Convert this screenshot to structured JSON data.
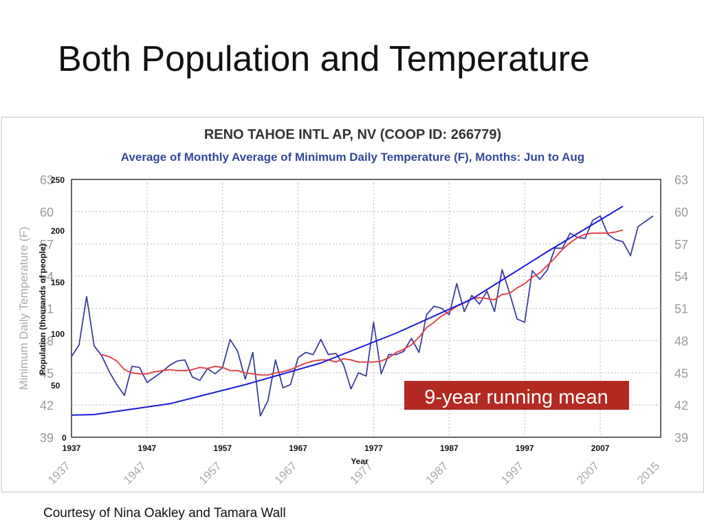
{
  "slide": {
    "title": "Both Population and Temperature",
    "credit": "Courtesy of Nina Oakley and Tamara Wall"
  },
  "chart_data": {
    "type": "line",
    "title": "RENO TAHOE INTL AP, NV (COOP ID: 266779)",
    "subtitle": "Average of Monthly Average of Minimum Daily Temperature (F), Months: Jun to Aug",
    "temperature_axis": {
      "label": "Minimum Daily Temperature (F)",
      "ylim": [
        39,
        63
      ],
      "ticks": [
        39,
        42,
        45,
        48,
        51,
        54,
        57,
        60,
        63
      ]
    },
    "population_axis": {
      "label": "Population (thousands of people)",
      "ylim": [
        0,
        250
      ],
      "ticks": [
        0,
        50,
        100,
        150,
        200,
        250
      ]
    },
    "year_axis": {
      "label": "Year",
      "range": [
        1937,
        2015
      ],
      "ticks": [
        1937,
        1947,
        1957,
        1967,
        1977,
        1987,
        1997,
        2007
      ],
      "rotated_ticks": [
        1937,
        1947,
        1957,
        1967,
        1977,
        1987,
        1997,
        2007,
        2015
      ]
    },
    "annotation": "9-year running mean",
    "series": [
      {
        "name": "",
        "axis": "temperature",
        "color": "#3b3d9c",
        "x": [
          1937,
          1938,
          1939,
          1940,
          1941,
          1942,
          1943,
          1944,
          1945,
          1946,
          1947,
          1948,
          1949,
          1950,
          1951,
          1952,
          1953,
          1954,
          1955,
          1956,
          1957,
          1958,
          1959,
          1960,
          1961,
          1962,
          1963,
          1964,
          1965,
          1966,
          1967,
          1968,
          1969,
          1970,
          1971,
          1972,
          1973,
          1974,
          1975,
          1976,
          1977,
          1978,
          1979,
          1980,
          1981,
          1982,
          1983,
          1984,
          1985,
          1986,
          1987,
          1988,
          1989,
          1990,
          1991,
          1992,
          1993,
          1994,
          1995,
          1996,
          1997,
          1998,
          1999,
          2000,
          2001,
          2002,
          2003,
          2004,
          2005,
          2006,
          2007,
          2008,
          2009,
          2010,
          2011,
          2012,
          2013,
          2014
        ],
        "values": [
          46.5,
          47.6,
          52.1,
          47.5,
          46.6,
          45.1,
          43.9,
          42.9,
          45.6,
          45.5,
          44.1,
          44.6,
          45.1,
          45.7,
          46.1,
          46.2,
          44.6,
          44.3,
          45.4,
          44.9,
          45.5,
          48.1,
          47.0,
          44.4,
          46.9,
          41.0,
          42.4,
          46.2,
          43.6,
          43.9,
          46.4,
          46.9,
          46.7,
          48.1,
          46.7,
          46.8,
          45.8,
          43.5,
          45.0,
          44.7,
          49.7,
          44.9,
          46.7,
          46.7,
          47.0,
          48.2,
          46.9,
          50.4,
          51.2,
          51.0,
          50.4,
          53.3,
          50.7,
          52.2,
          51.4,
          52.6,
          50.7,
          54.6,
          52.4,
          50.0,
          49.7,
          54.5,
          53.7,
          54.6,
          56.6,
          56.6,
          58.0,
          57.6,
          57.5,
          59.2,
          59.6,
          57.9,
          57.4,
          57.2,
          55.9,
          58.6,
          59.1,
          59.6
        ]
      },
      {
        "name": "9-year running mean",
        "axis": "temperature",
        "color": "#e04848",
        "x": [
          1941,
          1942,
          1943,
          1944,
          1945,
          1946,
          1947,
          1948,
          1949,
          1950,
          1951,
          1952,
          1953,
          1954,
          1955,
          1956,
          1957,
          1958,
          1959,
          1960,
          1961,
          1962,
          1963,
          1964,
          1965,
          1966,
          1967,
          1968,
          1969,
          1970,
          1971,
          1972,
          1973,
          1974,
          1975,
          1976,
          1977,
          1978,
          1979,
          1980,
          1981,
          1982,
          1983,
          1984,
          1985,
          1986,
          1987,
          1988,
          1989,
          1990,
          1991,
          1992,
          1993,
          1994,
          1995,
          1996,
          1997,
          1998,
          1999,
          2000,
          2001,
          2002,
          2003,
          2004,
          2005,
          2006,
          2007,
          2008,
          2009,
          2010
        ],
        "values": [
          46.7,
          46.5,
          46.1,
          45.3,
          45.0,
          44.9,
          44.9,
          45.1,
          45.2,
          45.3,
          45.2,
          45.2,
          45.3,
          45.5,
          45.4,
          45.6,
          45.5,
          45.2,
          45.2,
          45.0,
          44.9,
          44.8,
          44.8,
          45.0,
          45.1,
          45.3,
          45.6,
          45.9,
          46.1,
          46.2,
          46.2,
          46.0,
          46.3,
          46.2,
          46.0,
          46.0,
          46.0,
          46.1,
          46.4,
          46.9,
          47.2,
          47.6,
          48.3,
          49.2,
          49.7,
          50.3,
          50.7,
          51.2,
          51.5,
          51.9,
          52.0,
          51.9,
          51.8,
          52.3,
          52.4,
          52.9,
          53.3,
          53.9,
          54.3,
          55.0,
          55.7,
          56.5,
          57.1,
          57.6,
          57.9,
          58.0,
          58.0,
          58.0,
          58.1,
          58.3
        ]
      },
      {
        "name": "",
        "axis": "population",
        "color": "#1a1adb",
        "x": [
          1937,
          1940,
          1950,
          1960,
          1970,
          1980,
          1990,
          2000,
          2010
        ],
        "values": [
          21.5,
          22,
          32.5,
          51,
          72,
          101,
          134,
          180,
          224
        ]
      }
    ]
  }
}
